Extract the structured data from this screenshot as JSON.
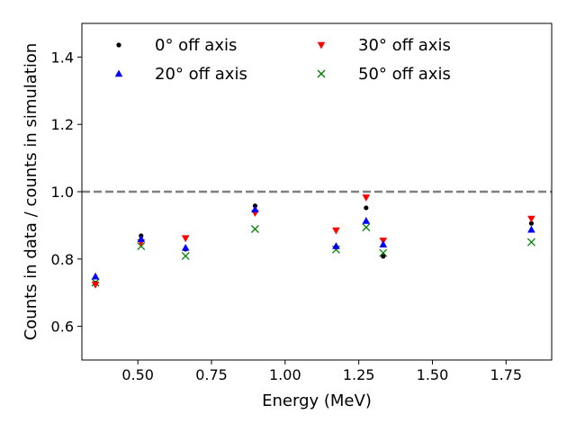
{
  "chart_data": {
    "type": "scatter",
    "title": "",
    "xlabel": "Energy (MeV)",
    "ylabel": "Counts in data / counts in simulation",
    "xlim": [
      0.31,
      1.905
    ],
    "ylim": [
      0.5,
      1.5
    ],
    "xticks": [
      0.5,
      0.75,
      1.0,
      1.25,
      1.5,
      1.75
    ],
    "xtick_labels": [
      "0.50",
      "0.75",
      "1.00",
      "1.25",
      "1.50",
      "1.75"
    ],
    "yticks": [
      0.6,
      0.8,
      1.0,
      1.2,
      1.4
    ],
    "ytick_labels": [
      "0.6",
      "0.8",
      "1.0",
      "1.2",
      "1.4"
    ],
    "reference_line": {
      "y": 1.0,
      "style": "dashed",
      "color": "#808080"
    },
    "grid": false,
    "legend_position": "top",
    "series": [
      {
        "name": "0° off axis",
        "marker": "dot",
        "color": "#000000",
        "x": [
          0.356,
          0.511,
          0.662,
          0.898,
          1.173,
          1.275,
          1.333,
          1.836
        ],
        "y": [
          0.728,
          0.869,
          0.829,
          0.958,
          0.836,
          0.952,
          0.808,
          0.906
        ]
      },
      {
        "name": "20° off axis",
        "marker": "triangle-up",
        "color": "#0000ff",
        "x": [
          0.356,
          0.511,
          0.662,
          0.898,
          1.173,
          1.275,
          1.333,
          1.836
        ],
        "y": [
          0.748,
          0.859,
          0.833,
          0.947,
          0.838,
          0.913,
          0.843,
          0.887
        ]
      },
      {
        "name": "30° off axis",
        "marker": "triangle-down",
        "color": "#ff0000",
        "x": [
          0.356,
          0.511,
          0.662,
          0.898,
          1.173,
          1.275,
          1.333,
          1.836
        ],
        "y": [
          0.724,
          0.85,
          0.862,
          0.937,
          0.885,
          0.983,
          0.855,
          0.92
        ]
      },
      {
        "name": "50° off axis",
        "marker": "x",
        "color": "#008000",
        "x": [
          0.356,
          0.511,
          0.662,
          0.898,
          1.173,
          1.275,
          1.333,
          1.836
        ],
        "y": [
          0.73,
          0.838,
          0.809,
          0.889,
          0.828,
          0.894,
          0.818,
          0.85
        ]
      }
    ]
  }
}
